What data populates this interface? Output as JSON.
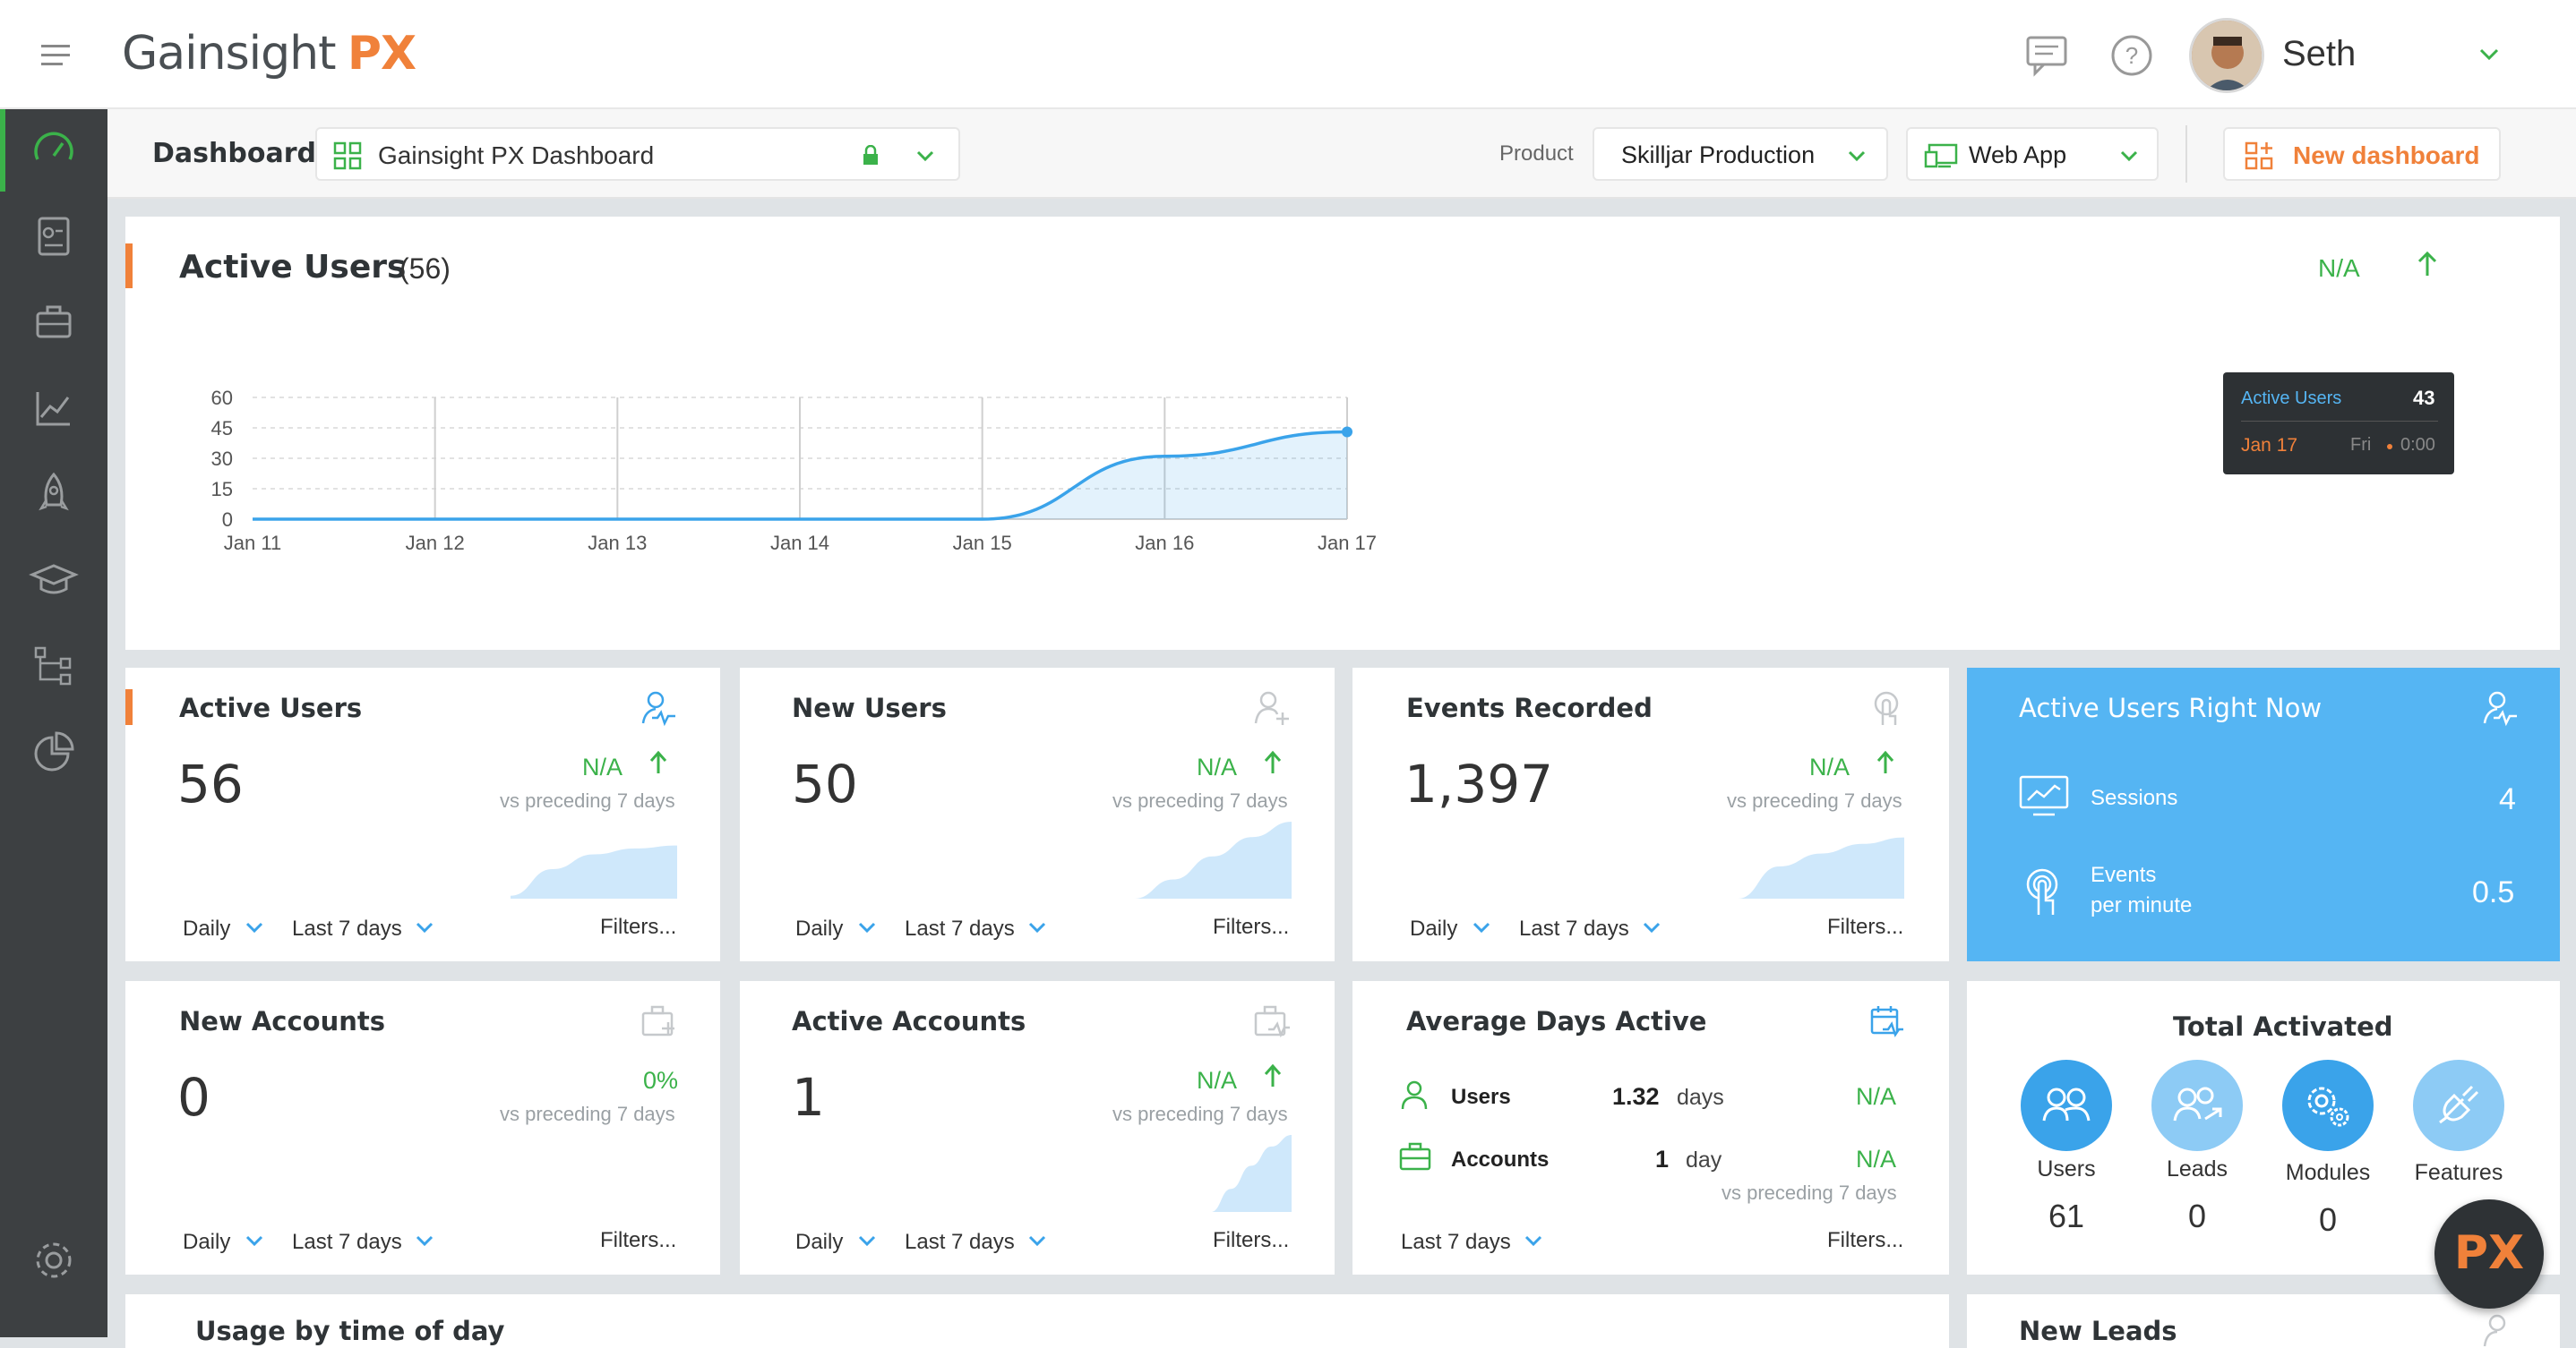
{
  "header": {
    "logo_main": "Gainsight",
    "logo_accent": "PX",
    "user_name": "Seth"
  },
  "subheader": {
    "page_label": "Dashboard",
    "dashboard_name": "Gainsight PX Dashboard",
    "product_label": "Product",
    "product_value": "Skilljar Production",
    "app_value": "Web App",
    "new_dashboard": "New dashboard"
  },
  "active_chart_card": {
    "title": "Active Users",
    "count": "(56)",
    "trend": "N/A",
    "tooltip": {
      "series": "Active Users",
      "value": "43",
      "date": "Jan 17",
      "day": "Fri",
      "time": "0:00"
    }
  },
  "chart_data": {
    "type": "area",
    "title": "Active Users",
    "x": [
      "Jan 11",
      "Jan 12",
      "Jan 13",
      "Jan 14",
      "Jan 15",
      "Jan 16",
      "Jan 17"
    ],
    "series": [
      {
        "name": "Active Users",
        "values": [
          0,
          0,
          0,
          0,
          0,
          31,
          43
        ]
      }
    ],
    "y_ticks": [
      "60",
      "45",
      "30",
      "15",
      "0"
    ],
    "ylim": [
      0,
      60
    ],
    "grid": true,
    "color": "#3aa3ea"
  },
  "cards": {
    "active_users": {
      "title": "Active Users",
      "value": "56",
      "trend": "N/A",
      "vs": "vs preceding 7 days",
      "freq": "Daily",
      "range": "Last 7 days",
      "filters": "Filters...",
      "spark": [
        0.05,
        0.5,
        0.75,
        0.85,
        0.9
      ]
    },
    "new_users": {
      "title": "New Users",
      "value": "50",
      "trend": "N/A",
      "vs": "vs preceding 7 days",
      "freq": "Daily",
      "range": "Last 7 days",
      "filters": "Filters...",
      "spark": [
        0.0,
        0.25,
        0.55,
        0.8,
        1.0
      ]
    },
    "events": {
      "title": "Events Recorded",
      "value": "1,397",
      "trend": "N/A",
      "vs": "vs preceding 7 days",
      "freq": "Daily",
      "range": "Last 7 days",
      "filters": "Filters...",
      "spark": [
        0.0,
        0.5,
        0.7,
        0.85,
        0.95
      ]
    },
    "new_accounts": {
      "title": "New Accounts",
      "value": "0",
      "trend": "0%",
      "vs": "vs preceding 7 days",
      "freq": "Daily",
      "range": "Last 7 days",
      "filters": "Filters..."
    },
    "active_accounts": {
      "title": "Active Accounts",
      "value": "1",
      "trend": "N/A",
      "vs": "vs preceding 7 days",
      "freq": "Daily",
      "range": "Last 7 days",
      "filters": "Filters...",
      "spark": [
        0.0,
        0.3,
        0.6,
        0.85,
        1.0
      ]
    },
    "avg_days": {
      "title": "Average Days Active",
      "users_label": "Users",
      "users_value": "1.32",
      "users_unit": "days",
      "users_trend": "N/A",
      "accounts_label": "Accounts",
      "accounts_value": "1",
      "accounts_unit": "day",
      "accounts_trend": "N/A",
      "vs": "vs preceding 7 days",
      "range": "Last 7 days",
      "filters": "Filters..."
    },
    "right_now": {
      "title": "Active Users Right Now",
      "sessions_label": "Sessions",
      "sessions_value": "4",
      "events_label_1": "Events",
      "events_label_2": "per minute",
      "events_value": "0.5",
      "color": "#55b5f3"
    },
    "total_activated": {
      "title": "Total Activated",
      "items": [
        {
          "label": "Users",
          "value": "61"
        },
        {
          "label": "Leads",
          "value": "0"
        },
        {
          "label": "Modules",
          "value": "0"
        },
        {
          "label": "Features",
          "value": ""
        }
      ]
    },
    "usage_time": {
      "title": "Usage by time of day"
    },
    "new_leads": {
      "title": "New Leads"
    }
  },
  "px_badge": "PX"
}
